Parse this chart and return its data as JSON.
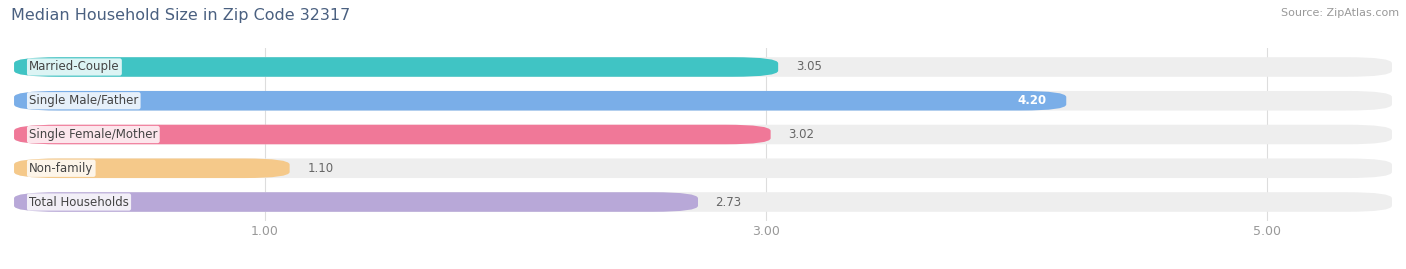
{
  "title": "Median Household Size in Zip Code 32317",
  "source": "Source: ZipAtlas.com",
  "categories": [
    "Married-Couple",
    "Single Male/Father",
    "Single Female/Mother",
    "Non-family",
    "Total Households"
  ],
  "values": [
    3.05,
    4.2,
    3.02,
    1.1,
    2.73
  ],
  "bar_colors": [
    "#40c4c4",
    "#7aaee8",
    "#f07898",
    "#f5c98a",
    "#b8a8d8"
  ],
  "bar_bg_color": "#eeeeee",
  "value_inside": [
    false,
    true,
    false,
    false,
    false
  ],
  "xmin": 0.0,
  "xmax": 5.5,
  "xticks": [
    1.0,
    3.0,
    5.0
  ],
  "xtick_labels": [
    "1.00",
    "3.00",
    "5.00"
  ],
  "title_color": "#4a6080",
  "title_fontsize": 11.5,
  "source_color": "#999999",
  "source_fontsize": 8,
  "bar_height": 0.58,
  "label_fontsize": 8.5,
  "value_fontsize": 8.5,
  "cat_label_color": "#444444",
  "value_label_color_outside": "#666666",
  "value_label_color_inside": "#ffffff"
}
